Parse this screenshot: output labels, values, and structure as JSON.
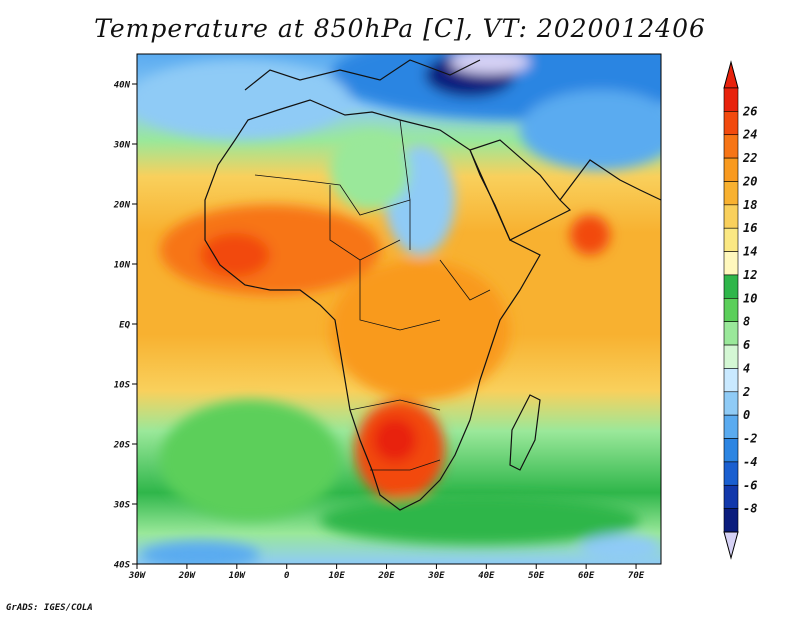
{
  "title": "Temperature at 850hPa [C], VT: 2020012406",
  "credit": "GrADS: IGES/COLA",
  "map": {
    "lon_range": [
      -30,
      75
    ],
    "lat_range": [
      -40,
      45
    ],
    "lat_ticks": [
      {
        "value": 40,
        "label": "40N"
      },
      {
        "value": 30,
        "label": "30N"
      },
      {
        "value": 20,
        "label": "20N"
      },
      {
        "value": 10,
        "label": "10N"
      },
      {
        "value": 0,
        "label": "EQ"
      },
      {
        "value": -10,
        "label": "10S"
      },
      {
        "value": -20,
        "label": "20S"
      },
      {
        "value": -30,
        "label": "30S"
      },
      {
        "value": -40,
        "label": "40S"
      }
    ],
    "lon_ticks": [
      {
        "value": -30,
        "label": "30W"
      },
      {
        "value": -20,
        "label": "20W"
      },
      {
        "value": -10,
        "label": "10W"
      },
      {
        "value": 0,
        "label": "0"
      },
      {
        "value": 10,
        "label": "10E"
      },
      {
        "value": 20,
        "label": "20E"
      },
      {
        "value": 30,
        "label": "30E"
      },
      {
        "value": 40,
        "label": "40E"
      },
      {
        "value": 50,
        "label": "50E"
      },
      {
        "value": 60,
        "label": "60E"
      },
      {
        "value": 70,
        "label": "70E"
      }
    ]
  },
  "colorbar": {
    "levels": [
      "26",
      "24",
      "22",
      "20",
      "18",
      "16",
      "14",
      "12",
      "10",
      "8",
      "6",
      "4",
      "2",
      "0",
      "-2",
      "-4",
      "-6",
      "-8"
    ],
    "colors": [
      "#e8220c",
      "#f24a0e",
      "#f77516",
      "#f99a1f",
      "#f8b130",
      "#f9d05c",
      "#fbe883",
      "#fff8bd",
      "#2fb64a",
      "#5bcf5a",
      "#9ae89a",
      "#d4f7d4",
      "#c9e9ff",
      "#8fcbf6",
      "#5aabf0",
      "#2c85e2",
      "#1a5fd0",
      "#1238ab",
      "#0b1d7d"
    ],
    "extend_low_color": "#d6d2f5"
  }
}
